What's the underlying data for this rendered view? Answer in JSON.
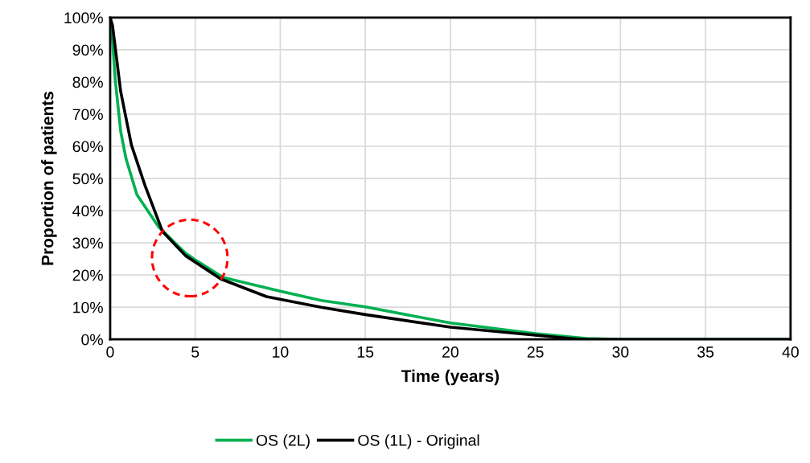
{
  "chart_data": {
    "type": "line",
    "xlabel": "Time (years)",
    "ylabel": "Proportion of patients",
    "series": [
      {
        "name": "OS (2L)",
        "color": "#00b050",
        "x": [
          0,
          0.08,
          0.3,
          0.62,
          0.94,
          1.57,
          2.84,
          4.43,
          5,
          6.65,
          10,
          12.4,
          15,
          20,
          25,
          28,
          30,
          40
        ],
        "values": [
          100,
          97.5,
          80.6,
          64.6,
          56,
          45,
          35,
          26.8,
          24.7,
          19.2,
          15,
          12.1,
          10.1,
          5.1,
          1.8,
          0.3,
          0,
          0
        ]
      },
      {
        "name": "OS (1L) - Original",
        "color": "#000000",
        "x": [
          0,
          0.14,
          0.62,
          1.25,
          2.05,
          3.08,
          4.43,
          6.5,
          9.19,
          12.4,
          15,
          20,
          25,
          27.7,
          40
        ],
        "values": [
          100,
          97.5,
          77,
          60.4,
          47.8,
          33.5,
          26,
          18.8,
          13.3,
          10,
          7.7,
          3.8,
          1.3,
          0,
          0
        ]
      }
    ],
    "xlim": [
      0,
      40
    ],
    "xticks": [
      0,
      5,
      10,
      15,
      20,
      25,
      30,
      35,
      40
    ],
    "ylim": [
      0,
      100
    ],
    "yticks": [
      {
        "value": 0,
        "label": "0%"
      },
      {
        "value": 10,
        "label": "10%"
      },
      {
        "value": 20,
        "label": "20%"
      },
      {
        "value": 30,
        "label": "30%"
      },
      {
        "value": 40,
        "label": "40%"
      },
      {
        "value": 50,
        "label": "50%"
      },
      {
        "value": 60,
        "label": "60%"
      },
      {
        "value": 70,
        "label": "70%"
      },
      {
        "value": 80,
        "label": "80%"
      },
      {
        "value": 90,
        "label": "90%"
      },
      {
        "value": 100,
        "label": "100%"
      }
    ],
    "grid": true,
    "legend": "bottom",
    "line_style": "solid",
    "marker": "none"
  }
}
